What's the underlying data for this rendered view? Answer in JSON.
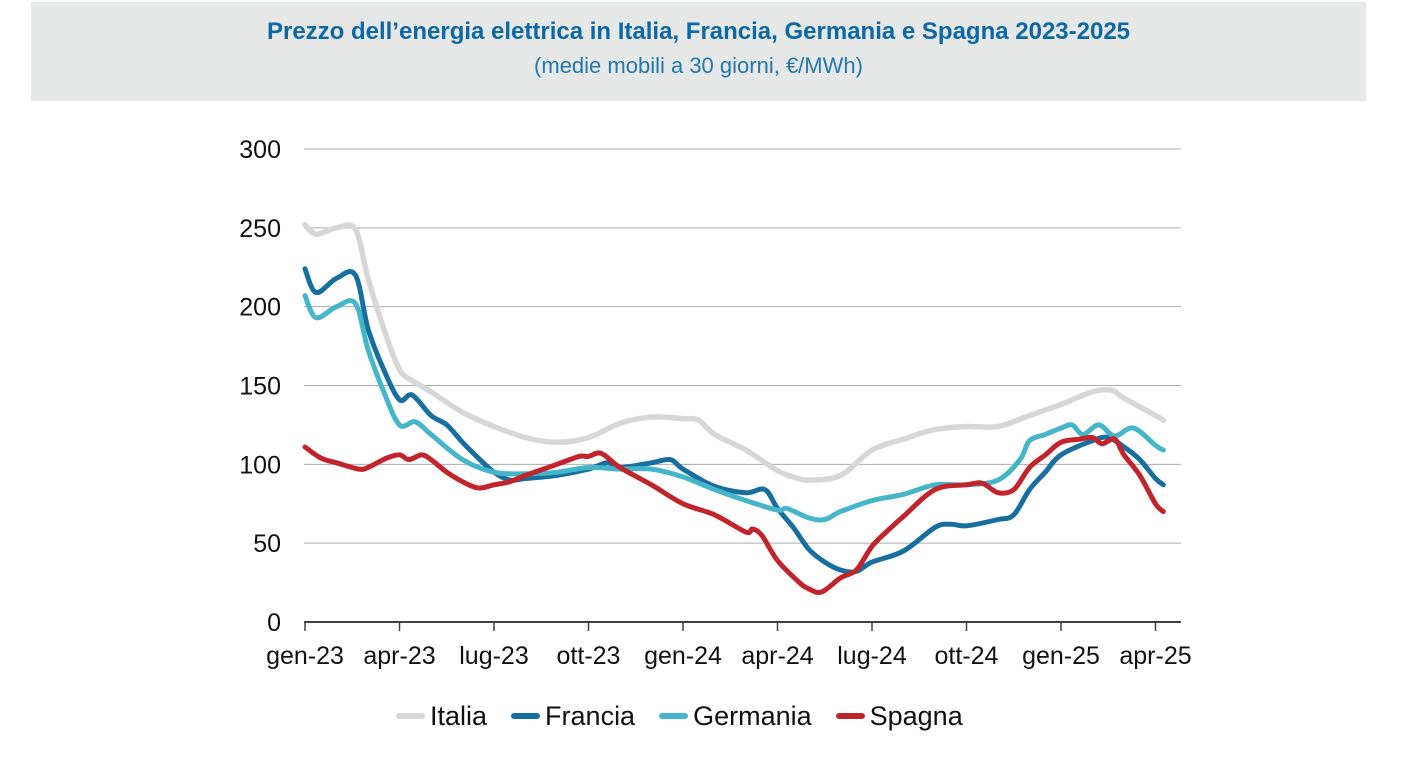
{
  "header": {
    "title": "Prezzo dell’energia elettrica in Italia, Francia, Germania e Spagna 2023-2025",
    "subtitle": "(medie mobili a 30 giorni, €/MWh)"
  },
  "colors": {
    "header_background": "#e6e7e7",
    "title_text": "#0d68a6",
    "subtitle_text": "#2179ad",
    "gridline": "#ababab",
    "axis": "#404040",
    "tick_label": "#111111"
  },
  "chart_data": {
    "type": "line",
    "title": "Prezzo dell’energia elettrica in Italia, Francia, Germania e Spagna 2023-2025",
    "subtitle": "(medie mobili a 30 giorni, €/MWh)",
    "unit": "€/MWh",
    "grid": true,
    "legend_position": "bottom",
    "x_unit": "months since gen-23 (0 = gen-23, fractional values = intra-month)",
    "x_axis": {
      "tick_labels": [
        "gen-23",
        "apr-23",
        "lug-23",
        "ott-23",
        "gen-24",
        "apr-24",
        "lug-24",
        "ott-24",
        "gen-25",
        "apr-25"
      ],
      "months_per_tick": 3,
      "x_range_months": [
        0,
        27.25
      ]
    },
    "y_axis": {
      "ticks": [
        0,
        50,
        100,
        150,
        200,
        250,
        300
      ],
      "range": [
        0,
        300
      ]
    },
    "series": [
      {
        "name": "Italia",
        "color": "#d7d7d7",
        "stroke_width": 5.5,
        "points": [
          [
            0,
            252
          ],
          [
            0.35,
            246
          ],
          [
            1,
            250
          ],
          [
            1.6,
            249
          ],
          [
            2,
            218
          ],
          [
            2.5,
            186
          ],
          [
            3,
            160
          ],
          [
            3.5,
            152
          ],
          [
            4,
            146
          ],
          [
            5,
            133
          ],
          [
            6,
            124
          ],
          [
            7,
            117
          ],
          [
            8,
            114
          ],
          [
            9,
            117
          ],
          [
            10,
            126
          ],
          [
            11,
            130
          ],
          [
            12,
            129
          ],
          [
            12.5,
            128
          ],
          [
            13,
            119
          ],
          [
            14,
            109
          ],
          [
            15,
            96
          ],
          [
            15.5,
            92
          ],
          [
            16,
            90
          ],
          [
            17,
            93
          ],
          [
            18,
            109
          ],
          [
            19,
            116
          ],
          [
            20,
            122
          ],
          [
            21,
            124
          ],
          [
            22,
            124
          ],
          [
            23,
            131
          ],
          [
            24,
            138
          ],
          [
            25,
            146
          ],
          [
            25.6,
            147
          ],
          [
            26,
            142
          ],
          [
            27,
            131
          ],
          [
            27.25,
            128
          ]
        ]
      },
      {
        "name": "Francia",
        "color": "#176f9f",
        "stroke_width": 5,
        "points": [
          [
            0,
            224
          ],
          [
            0.35,
            209
          ],
          [
            1,
            218
          ],
          [
            1.6,
            220
          ],
          [
            2,
            186
          ],
          [
            2.5,
            160
          ],
          [
            3,
            141
          ],
          [
            3.4,
            144
          ],
          [
            4,
            131
          ],
          [
            4.5,
            125
          ],
          [
            5,
            114
          ],
          [
            5.5,
            104
          ],
          [
            6,
            95
          ],
          [
            6.5,
            90
          ],
          [
            7,
            91
          ],
          [
            8,
            93
          ],
          [
            9,
            97
          ],
          [
            9.6,
            101
          ],
          [
            10,
            98
          ],
          [
            11,
            101
          ],
          [
            11.6,
            103
          ],
          [
            12,
            97
          ],
          [
            13,
            86
          ],
          [
            14,
            82
          ],
          [
            14.6,
            84
          ],
          [
            15,
            72
          ],
          [
            15.5,
            60
          ],
          [
            16,
            46
          ],
          [
            16.5,
            38
          ],
          [
            17,
            33
          ],
          [
            17.5,
            32
          ],
          [
            18,
            38
          ],
          [
            19,
            45
          ],
          [
            20,
            60
          ],
          [
            20.5,
            62
          ],
          [
            21,
            61
          ],
          [
            22,
            65
          ],
          [
            22.5,
            68
          ],
          [
            23,
            84
          ],
          [
            23.5,
            95
          ],
          [
            24,
            106
          ],
          [
            25,
            115
          ],
          [
            25.5,
            117
          ],
          [
            26,
            111
          ],
          [
            26.5,
            103
          ],
          [
            27,
            91
          ],
          [
            27.25,
            87
          ]
        ]
      },
      {
        "name": "Germania",
        "color": "#45b5c9",
        "stroke_width": 5,
        "points": [
          [
            0,
            207
          ],
          [
            0.35,
            193
          ],
          [
            1,
            200
          ],
          [
            1.6,
            202
          ],
          [
            2,
            173
          ],
          [
            2.5,
            146
          ],
          [
            3,
            125
          ],
          [
            3.5,
            127
          ],
          [
            4,
            119
          ],
          [
            5,
            103
          ],
          [
            6,
            95
          ],
          [
            7,
            94
          ],
          [
            8,
            95
          ],
          [
            9,
            98
          ],
          [
            10,
            97
          ],
          [
            11,
            97
          ],
          [
            12,
            92
          ],
          [
            13,
            84
          ],
          [
            14,
            77
          ],
          [
            15,
            71
          ],
          [
            15.3,
            72
          ],
          [
            16,
            66
          ],
          [
            16.5,
            65
          ],
          [
            17,
            70
          ],
          [
            18,
            77
          ],
          [
            19,
            81
          ],
          [
            20,
            87
          ],
          [
            21,
            87
          ],
          [
            22,
            90
          ],
          [
            22.7,
            103
          ],
          [
            23,
            115
          ],
          [
            23.5,
            119
          ],
          [
            24,
            123
          ],
          [
            24.35,
            125
          ],
          [
            24.7,
            119
          ],
          [
            25.2,
            125
          ],
          [
            25.7,
            118
          ],
          [
            26.3,
            123
          ],
          [
            27,
            112
          ],
          [
            27.25,
            109
          ]
        ]
      },
      {
        "name": "Spagna",
        "color": "#c2242c",
        "stroke_width": 5,
        "points": [
          [
            0,
            111
          ],
          [
            0.5,
            104
          ],
          [
            1,
            101
          ],
          [
            1.7,
            97
          ],
          [
            2,
            98
          ],
          [
            2.6,
            104
          ],
          [
            3,
            106
          ],
          [
            3.3,
            103
          ],
          [
            3.7,
            106
          ],
          [
            4,
            103
          ],
          [
            4.5,
            95
          ],
          [
            5,
            89
          ],
          [
            5.5,
            85
          ],
          [
            6,
            87
          ],
          [
            6.5,
            89
          ],
          [
            7,
            93
          ],
          [
            8,
            100
          ],
          [
            8.7,
            105
          ],
          [
            9,
            105
          ],
          [
            9.4,
            107
          ],
          [
            10,
            98
          ],
          [
            11,
            87
          ],
          [
            12,
            75
          ],
          [
            13,
            68
          ],
          [
            14,
            57
          ],
          [
            14.2,
            59
          ],
          [
            14.5,
            55
          ],
          [
            15,
            39
          ],
          [
            15.7,
            25
          ],
          [
            16,
            21
          ],
          [
            16.4,
            19
          ],
          [
            17,
            28
          ],
          [
            17.5,
            33
          ],
          [
            18,
            48
          ],
          [
            18.5,
            58
          ],
          [
            19,
            67
          ],
          [
            20,
            84
          ],
          [
            21,
            87
          ],
          [
            21.5,
            88
          ],
          [
            22,
            82
          ],
          [
            22.5,
            84
          ],
          [
            23,
            98
          ],
          [
            23.5,
            106
          ],
          [
            24,
            114
          ],
          [
            24.6,
            116
          ],
          [
            25,
            117
          ],
          [
            25.3,
            113
          ],
          [
            25.7,
            116
          ],
          [
            26,
            106
          ],
          [
            26.5,
            93
          ],
          [
            27,
            75
          ],
          [
            27.25,
            70
          ]
        ]
      }
    ],
    "monthly_values_at_ticks": {
      "note": "approximate values (€/MWh) read at quarterly ticks gen-23..apr-25",
      "Italia": [
        252,
        160,
        124,
        117,
        129,
        96,
        109,
        124,
        138,
        128
      ],
      "Francia": [
        224,
        141,
        95,
        97,
        97,
        72,
        38,
        61,
        106,
        87
      ],
      "Germania": [
        207,
        125,
        95,
        98,
        92,
        71,
        77,
        87,
        123,
        109
      ],
      "Spagna": [
        111,
        106,
        87,
        105,
        75,
        39,
        48,
        87,
        114,
        70
      ]
    }
  }
}
